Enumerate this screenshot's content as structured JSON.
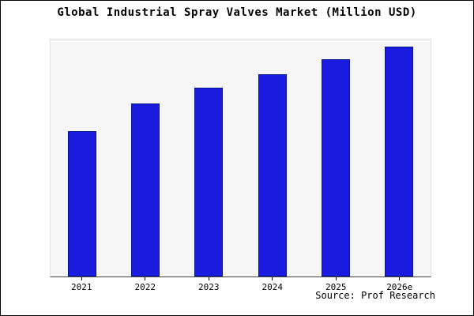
{
  "title": "Global Industrial Spray Valves Market (Million USD)",
  "source": "Source: Prof Research",
  "colors": {
    "bar_fill": "#1b1be0",
    "bar_border": "#041690",
    "plot_background": "#f6f6f6",
    "frame_border": "#000000"
  },
  "chart_data": {
    "type": "bar",
    "title": "Global Industrial Spray Valves Market (Million USD)",
    "categories": [
      "2021",
      "2022",
      "2023",
      "2024",
      "2025",
      "2026e"
    ],
    "values": [
      190,
      226,
      247,
      265,
      284,
      301
    ],
    "xlabel": "",
    "ylabel": "",
    "ylim": [
      0,
      310
    ],
    "grid": false,
    "legend_position": "none",
    "y_axis_labels_visible": false,
    "source_annotation": "Source: Prof Research"
  }
}
